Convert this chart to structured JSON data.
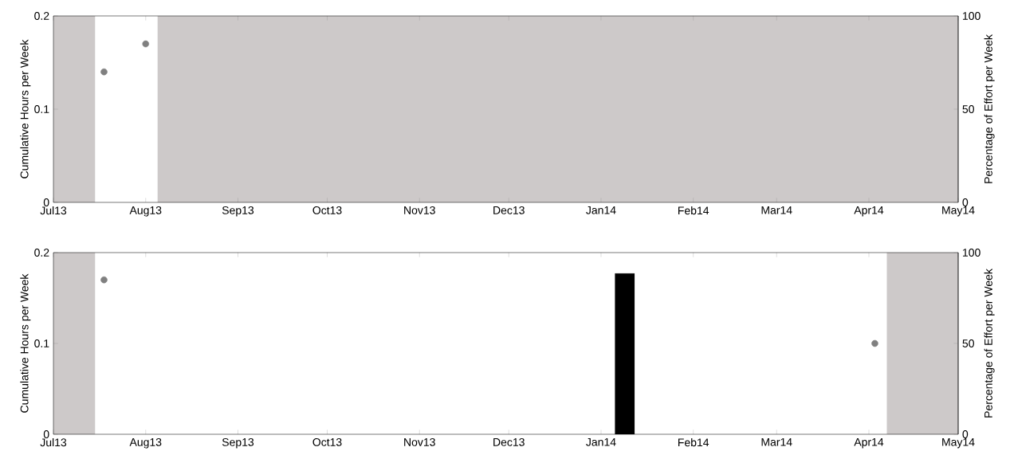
{
  "chart_data": [
    {
      "type": "scatter",
      "xlim": [
        "2013-07-01",
        "2014-05-01"
      ],
      "xticks": [
        {
          "value": "2013-07-01",
          "label": "Jul13"
        },
        {
          "value": "2013-08-01",
          "label": "Aug13"
        },
        {
          "value": "2013-09-01",
          "label": "Sep13"
        },
        {
          "value": "2013-10-01",
          "label": "Oct13"
        },
        {
          "value": "2013-11-01",
          "label": "Nov13"
        },
        {
          "value": "2013-12-01",
          "label": "Dec13"
        },
        {
          "value": "2014-01-01",
          "label": "Jan14"
        },
        {
          "value": "2014-02-01",
          "label": "Feb14"
        },
        {
          "value": "2014-03-01",
          "label": "Mar14"
        },
        {
          "value": "2014-04-01",
          "label": "Apr14"
        },
        {
          "value": "2014-05-01",
          "label": "May14"
        }
      ],
      "ylim": [
        0,
        0.2
      ],
      "yticks": [
        0,
        0.1,
        0.2
      ],
      "y2lim": [
        0,
        100
      ],
      "y2ticks": [
        0,
        50,
        100
      ],
      "ylabel": "Cumulative Hours per Week",
      "y2label": "Percentage of Effort per Week",
      "bands": [
        {
          "axis": "x",
          "from": "2013-07-01",
          "to": "2013-07-15",
          "color": "#cdc9c9"
        },
        {
          "axis": "x",
          "from": "2013-08-05",
          "to": "2014-05-01",
          "color": "#cdc9c9"
        }
      ],
      "series": [
        {
          "color": "#808080",
          "x": [
            "2013-07-18",
            "2013-08-01"
          ],
          "values": [
            0.14,
            0.17
          ]
        }
      ]
    },
    {
      "type": "bar",
      "xlim": [
        "2013-07-01",
        "2014-05-01"
      ],
      "xticks": [
        {
          "value": "2013-07-01",
          "label": "Jul13"
        },
        {
          "value": "2013-08-01",
          "label": "Aug13"
        },
        {
          "value": "2013-09-01",
          "label": "Sep13"
        },
        {
          "value": "2013-10-01",
          "label": "Oct13"
        },
        {
          "value": "2013-11-01",
          "label": "Nov13"
        },
        {
          "value": "2013-12-01",
          "label": "Dec13"
        },
        {
          "value": "2014-01-01",
          "label": "Jan14"
        },
        {
          "value": "2014-02-01",
          "label": "Feb14"
        },
        {
          "value": "2014-03-01",
          "label": "Mar14"
        },
        {
          "value": "2014-04-01",
          "label": "Apr14"
        },
        {
          "value": "2014-05-01",
          "label": "May14"
        }
      ],
      "ylim": [
        0,
        0.2
      ],
      "yticks": [
        0,
        0.1,
        0.2
      ],
      "y2lim": [
        0,
        100
      ],
      "y2ticks": [
        0,
        50,
        100
      ],
      "ylabel": "Cumulative Hours per Week",
      "y2label": "Percentage of Effort per Week",
      "bands": [
        {
          "axis": "x",
          "from": "2013-07-01",
          "to": "2013-07-15",
          "color": "#cdc9c9"
        },
        {
          "axis": "x",
          "from": "2014-04-07",
          "to": "2014-05-01",
          "color": "#cdc9c9"
        }
      ],
      "series": [
        {
          "color": "#000000",
          "x": [
            "2014-01-09"
          ],
          "values": [
            0.177
          ]
        },
        {
          "type": "scatter",
          "color": "#808080",
          "x": [
            "2013-07-18",
            "2014-04-03"
          ],
          "values": [
            0.17,
            0.1
          ]
        }
      ]
    }
  ]
}
